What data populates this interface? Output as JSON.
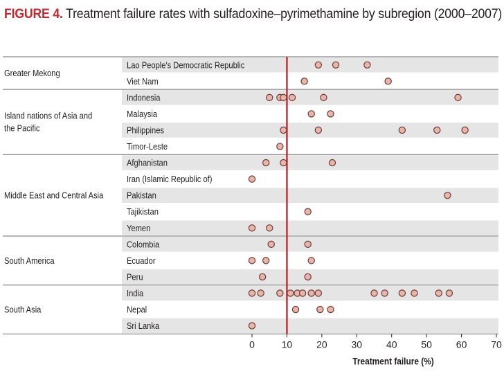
{
  "title": {
    "figure_label": "FIGURE 4.",
    "text": "Treatment failure rates with sulfadoxine–pyrimethamine by subregion (2000–2007)"
  },
  "colors": {
    "accent": "#c8252c",
    "marker_fill": "#e9b5aa",
    "marker_stroke": "#6b3b33",
    "row_band": "#e5e5e5",
    "reference_line": "#c8252c"
  },
  "chart_data": {
    "type": "scatter",
    "title": "Treatment failure rates with sulfadoxine–pyrimethamine by subregion (2000–2007)",
    "xlabel": "Treatment failure (%)",
    "ylabel": "",
    "xlim": [
      0,
      70
    ],
    "xticks": [
      0,
      10,
      20,
      30,
      40,
      50,
      60,
      70
    ],
    "reference_line_x": 10,
    "grid": false,
    "groups": [
      {
        "name": "Greater Mekong",
        "countries": [
          {
            "name": "Lao People's Democratic Republic",
            "values": [
              19,
              24,
              33
            ]
          },
          {
            "name": "Viet Nam",
            "values": [
              15,
              39
            ]
          }
        ]
      },
      {
        "name": "Island nations of Asia and the Pacific",
        "countries": [
          {
            "name": "Indonesia",
            "values": [
              5,
              8,
              9,
              11.5,
              20.5,
              59
            ]
          },
          {
            "name": "Malaysia",
            "values": [
              17,
              22.5
            ]
          },
          {
            "name": "Philippines",
            "values": [
              9,
              19,
              43,
              53,
              61
            ]
          },
          {
            "name": "Timor-Leste",
            "values": [
              8
            ]
          }
        ]
      },
      {
        "name": "Middle East and Central Asia",
        "countries": [
          {
            "name": "Afghanistan",
            "values": [
              4,
              9,
              23
            ]
          },
          {
            "name": "Iran (Islamic Republic of)",
            "values": [
              0
            ]
          },
          {
            "name": "Pakistan",
            "values": [
              56
            ]
          },
          {
            "name": "Tajikistan",
            "values": [
              16
            ]
          },
          {
            "name": "Yemen",
            "values": [
              0,
              5
            ]
          }
        ]
      },
      {
        "name": "South America",
        "countries": [
          {
            "name": "Colombia",
            "values": [
              5.5,
              16
            ]
          },
          {
            "name": "Ecuador",
            "values": [
              0,
              4,
              17
            ]
          },
          {
            "name": "Peru",
            "values": [
              3,
              16
            ]
          }
        ]
      },
      {
        "name": "South Asia",
        "countries": [
          {
            "name": "India",
            "values": [
              0,
              2.5,
              8,
              11,
              13,
              14.5,
              17,
              19,
              35,
              38,
              43,
              46.5,
              53.5,
              56.5
            ]
          },
          {
            "name": "Nepal",
            "values": [
              12.5,
              19.5,
              22.5
            ]
          },
          {
            "name": "Sri Lanka",
            "values": [
              0
            ]
          }
        ]
      }
    ]
  }
}
